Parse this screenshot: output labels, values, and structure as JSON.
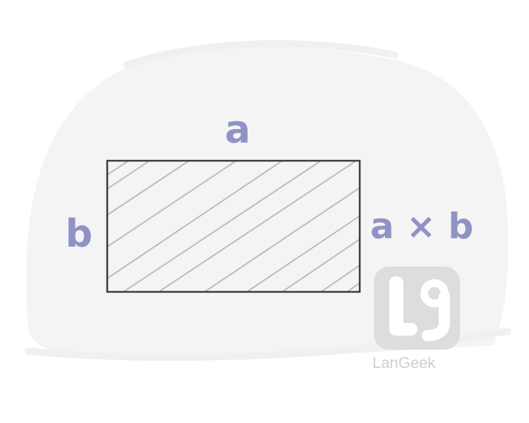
{
  "labels": {
    "top": "a",
    "left": "b",
    "formula": "a × b"
  },
  "watermark": {
    "brand": "LanGeek",
    "icon": "langeek-logo-icon"
  },
  "colors": {
    "label": "#8f93c4",
    "outline": "#3a3a3a",
    "hatch": "#a9bcbc",
    "blob": "#f4f4f4",
    "watermark": "#d9d9d9"
  }
}
